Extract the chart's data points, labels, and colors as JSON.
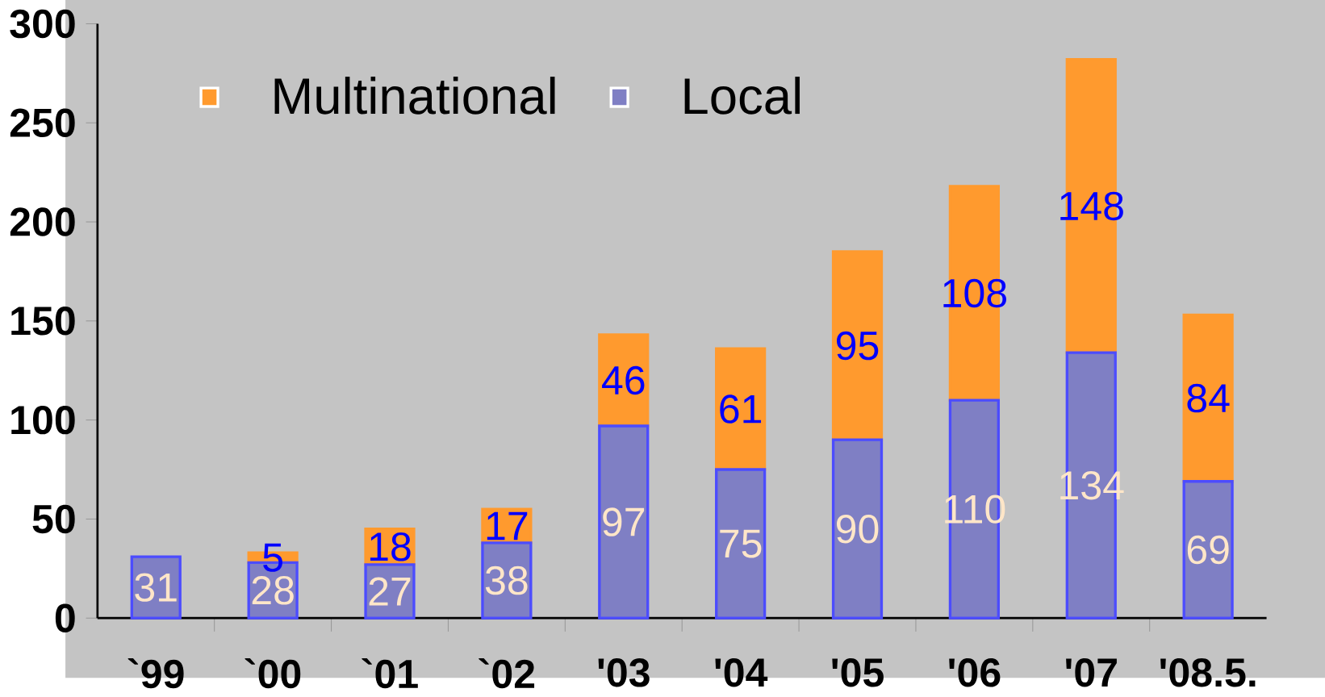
{
  "chart_data": {
    "type": "bar",
    "stacked": true,
    "categories": [
      "`99",
      "`00",
      "`01",
      "`02",
      "'03",
      "'04",
      "'05",
      "'06",
      "'07",
      "'08.5."
    ],
    "series": [
      {
        "name": "Local",
        "color": "#7f7fc4",
        "values": [
          31,
          28,
          27,
          38,
          97,
          75,
          90,
          110,
          134,
          69
        ]
      },
      {
        "name": "Multinational",
        "color": "#ff9a2e",
        "values": [
          null,
          5,
          18,
          17,
          46,
          61,
          95,
          108,
          148,
          84
        ]
      }
    ],
    "ylim": [
      0,
      300
    ],
    "yticks": [
      0,
      50,
      100,
      150,
      200,
      250,
      300
    ],
    "data_labels": true,
    "legend": "top left"
  }
}
